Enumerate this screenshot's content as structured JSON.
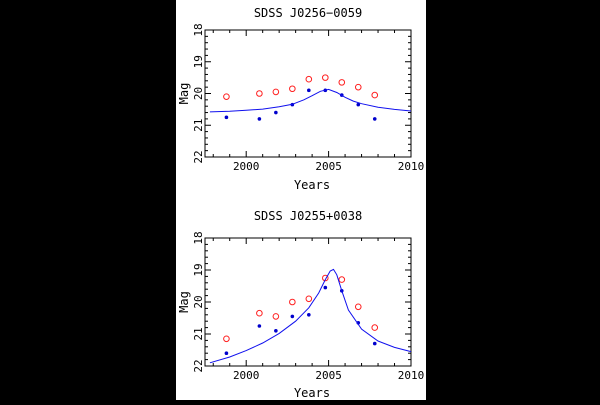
{
  "colors": {
    "background": "#000000",
    "panel": "#ffffff",
    "filled_points": "#0000cc",
    "open_points": "#ff2020",
    "fit_line": "#1010ee"
  },
  "chart_data": [
    {
      "type": "scatter",
      "title": "SDSS J0256−0059",
      "xlabel": "Years",
      "ylabel": "Mag",
      "xlim": [
        1997.5,
        2010
      ],
      "ylim": [
        22,
        18
      ],
      "y_inverted": true,
      "grid": false,
      "xticks": [
        "2000",
        "2005",
        "2010"
      ],
      "yticks": [
        "18",
        "19",
        "20",
        "21",
        "22"
      ],
      "series": [
        {
          "marker": "filled-dot",
          "x": [
            1998.8,
            2000.8,
            2001.8,
            2002.8,
            2003.8,
            2004.8,
            2005.8,
            2006.8,
            2007.8
          ],
          "y": [
            20.75,
            20.8,
            20.6,
            20.35,
            19.9,
            19.9,
            20.05,
            20.35,
            20.8
          ]
        },
        {
          "marker": "open-circle",
          "x": [
            1998.8,
            2000.8,
            2001.8,
            2002.8,
            2003.8,
            2004.8,
            2005.8,
            2006.8,
            2007.8
          ],
          "y": [
            20.1,
            20.0,
            19.95,
            19.85,
            19.55,
            19.5,
            19.65,
            19.8,
            20.05
          ]
        },
        {
          "marker": "line",
          "x": [
            1997.8,
            1999,
            2000,
            2001,
            2002,
            2002.8,
            2003.5,
            2004,
            2004.5,
            2005,
            2005.5,
            2006,
            2006.5,
            2007,
            2008,
            2009,
            2010
          ],
          "y": [
            20.58,
            20.56,
            20.53,
            20.49,
            20.42,
            20.34,
            20.2,
            20.07,
            19.93,
            19.87,
            19.97,
            20.12,
            20.24,
            20.32,
            20.43,
            20.5,
            20.55
          ]
        }
      ]
    },
    {
      "type": "scatter",
      "title": "SDSS J0255+0038",
      "xlabel": "Years",
      "ylabel": "Mag",
      "xlim": [
        1997.5,
        2010
      ],
      "ylim": [
        22,
        18
      ],
      "y_inverted": true,
      "grid": false,
      "xticks": [
        "2000",
        "2005",
        "2010"
      ],
      "yticks": [
        "18",
        "19",
        "20",
        "21",
        "22"
      ],
      "series": [
        {
          "marker": "filled-dot",
          "x": [
            1998.8,
            2000.8,
            2001.8,
            2002.8,
            2003.8,
            2004.8,
            2005.8,
            2006.8,
            2007.8
          ],
          "y": [
            21.6,
            20.75,
            20.9,
            20.45,
            20.4,
            19.55,
            19.65,
            20.65,
            21.3
          ]
        },
        {
          "marker": "open-circle",
          "x": [
            1998.8,
            2000.8,
            2001.8,
            2002.8,
            2003.8,
            2004.8,
            2005.8,
            2006.8,
            2007.8
          ],
          "y": [
            21.15,
            20.35,
            20.45,
            20.0,
            19.9,
            19.25,
            19.3,
            20.15,
            20.8
          ]
        },
        {
          "marker": "line",
          "x": [
            1997.8,
            1999,
            2000,
            2001,
            2002,
            2003,
            2003.8,
            2004.4,
            2004.8,
            2005.1,
            2005.3,
            2005.5,
            2005.8,
            2006.2,
            2007,
            2008,
            2009,
            2010
          ],
          "y": [
            21.9,
            21.72,
            21.52,
            21.28,
            20.98,
            20.6,
            20.18,
            19.72,
            19.3,
            19.03,
            18.98,
            19.15,
            19.65,
            20.25,
            20.85,
            21.22,
            21.42,
            21.55
          ]
        }
      ]
    }
  ]
}
